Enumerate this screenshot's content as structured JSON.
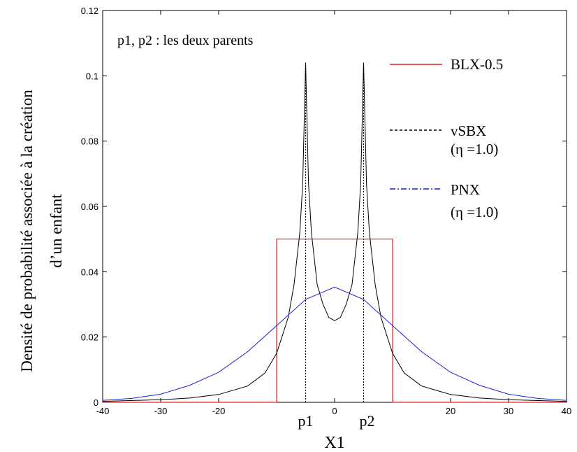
{
  "chart_data": {
    "type": "line",
    "title": "",
    "xlabel": "X1",
    "ylabel_line1": "Densité de probabilité associée à la création",
    "ylabel_line2": "d’un enfant",
    "xlim": [
      -40,
      40
    ],
    "ylim": [
      0,
      0.12
    ],
    "x_ticks": [
      -40,
      -30,
      -20,
      0,
      20,
      30,
      40
    ],
    "x_tick_labels": [
      "-40",
      "-30",
      "-20",
      "0",
      "20",
      "30",
      "40"
    ],
    "y_ticks": [
      0,
      0.02,
      0.04,
      0.06,
      0.08,
      0.1,
      0.12
    ],
    "y_tick_labels": [
      "0",
      "0.02",
      "0.04",
      "0.06",
      "0.08",
      "0.1",
      "0.12"
    ],
    "grid": false,
    "legend_position": "right",
    "annotation": "p1, p2 : les deux parents",
    "parent_markers": [
      {
        "label": "p1",
        "x": -5
      },
      {
        "label": "p2",
        "x": 5
      }
    ],
    "series": [
      {
        "name": "BLX-0.5",
        "style": "solid",
        "color": "#e8201c",
        "x": [
          -40,
          -10,
          -10,
          10,
          10,
          40
        ],
        "y": [
          0,
          0,
          0.05,
          0.05,
          0,
          0
        ]
      },
      {
        "name": "vSBX",
        "param": "(η =1.0)",
        "style": "dashed",
        "color": "#000000",
        "peak_x": [
          -5,
          5
        ],
        "peak_y": 0.104,
        "valley_y": 0.025,
        "x": [
          -40,
          -30,
          -25,
          -20,
          -15,
          -12,
          -10,
          -8,
          -7,
          -6,
          -5.5,
          -5,
          -4.5,
          -4,
          -3,
          -2,
          -1,
          0,
          1,
          2,
          3,
          4,
          4.5,
          5,
          5.5,
          6,
          7,
          8,
          10,
          12,
          15,
          20,
          25,
          30,
          40
        ],
        "y": [
          0.0003,
          0.0008,
          0.0013,
          0.0024,
          0.005,
          0.009,
          0.015,
          0.026,
          0.036,
          0.052,
          0.067,
          0.104,
          0.067,
          0.052,
          0.036,
          0.03,
          0.026,
          0.025,
          0.026,
          0.03,
          0.036,
          0.052,
          0.067,
          0.104,
          0.067,
          0.052,
          0.036,
          0.026,
          0.015,
          0.009,
          0.005,
          0.0024,
          0.0013,
          0.0008,
          0.0003
        ]
      },
      {
        "name": "PNX",
        "param": "(η =1.0)",
        "style": "dash-dot",
        "color": "#1f1fd6",
        "x": [
          -40,
          -35,
          -30,
          -25,
          -20,
          -15,
          -10,
          -5,
          0,
          5,
          10,
          15,
          20,
          25,
          30,
          35,
          40
        ],
        "y": [
          0.0006,
          0.0012,
          0.0025,
          0.0052,
          0.0092,
          0.0155,
          0.0235,
          0.0315,
          0.0353,
          0.0315,
          0.0235,
          0.0155,
          0.0092,
          0.0052,
          0.0025,
          0.0012,
          0.0006
        ]
      }
    ]
  }
}
